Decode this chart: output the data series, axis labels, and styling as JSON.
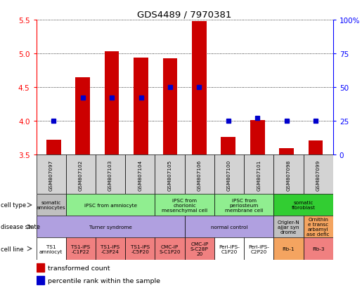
{
  "title": "GDS4489 / 7970381",
  "samples": [
    "GSM807097",
    "GSM807102",
    "GSM807103",
    "GSM807104",
    "GSM807105",
    "GSM807106",
    "GSM807100",
    "GSM807101",
    "GSM807098",
    "GSM807099"
  ],
  "transformed_count": [
    3.72,
    4.65,
    5.03,
    4.94,
    4.93,
    5.48,
    3.76,
    4.01,
    3.6,
    3.71
  ],
  "percentile_rank": [
    25.0,
    42.5,
    42.5,
    42.5,
    50.0,
    50.0,
    25.0,
    27.5,
    25.0,
    25.0
  ],
  "ylim_left": [
    3.5,
    5.5
  ],
  "ylim_right": [
    0,
    100
  ],
  "yticks_left": [
    3.5,
    4.0,
    4.5,
    5.0,
    5.5
  ],
  "yticks_right": [
    0,
    25,
    50,
    75,
    100
  ],
  "bar_color": "#cc0000",
  "dot_color": "#0000cc",
  "bar_bottom": 3.5,
  "cell_type_groups": [
    {
      "label": "somatic\namniocytes",
      "start": 0,
      "end": 1,
      "color": "#c0c0c0"
    },
    {
      "label": "iPSC from amniocyte",
      "start": 1,
      "end": 4,
      "color": "#90ee90"
    },
    {
      "label": "iPSC from\nchorionic\nmesenchymal cell",
      "start": 4,
      "end": 6,
      "color": "#90ee90"
    },
    {
      "label": "iPSC from\nperiosteum\nmembrane cell",
      "start": 6,
      "end": 8,
      "color": "#90ee90"
    },
    {
      "label": "somatic\nfibroblast",
      "start": 8,
      "end": 10,
      "color": "#32cd32"
    }
  ],
  "disease_state_groups": [
    {
      "label": "Turner syndrome",
      "start": 0,
      "end": 5,
      "color": "#b0a0e0"
    },
    {
      "label": "normal control",
      "start": 5,
      "end": 8,
      "color": "#b0a0e0"
    },
    {
      "label": "Crigler-N\najjar syn\ndrome",
      "start": 8,
      "end": 9,
      "color": "#c0c0c0"
    },
    {
      "label": "Ornithin\ne transc\narbamyl\nase defic",
      "start": 9,
      "end": 10,
      "color": "#f4a460"
    }
  ],
  "cell_line_groups": [
    {
      "label": "TS1\namniocyt",
      "start": 0,
      "end": 1,
      "color": "#ffffff"
    },
    {
      "label": "TS1-iPS\n-C1P22",
      "start": 1,
      "end": 2,
      "color": "#f08080"
    },
    {
      "label": "TS1-iPS\n-C3P24",
      "start": 2,
      "end": 3,
      "color": "#f08080"
    },
    {
      "label": "TS1-iPS\n-C5P20",
      "start": 3,
      "end": 4,
      "color": "#f08080"
    },
    {
      "label": "CMC-iP\nS-C1P20",
      "start": 4,
      "end": 5,
      "color": "#f08080"
    },
    {
      "label": "CMC-iP\nS-C28P\n20",
      "start": 5,
      "end": 6,
      "color": "#f08080"
    },
    {
      "label": "Peri-iPS-\nC1P20",
      "start": 6,
      "end": 7,
      "color": "#ffffff"
    },
    {
      "label": "Peri-iPS-\nC2P20",
      "start": 7,
      "end": 8,
      "color": "#ffffff"
    },
    {
      "label": "Fib-1",
      "start": 8,
      "end": 9,
      "color": "#f4a460"
    },
    {
      "label": "Fib-3",
      "start": 9,
      "end": 10,
      "color": "#f08080"
    }
  ],
  "row_labels": [
    "cell type",
    "disease state",
    "cell line"
  ]
}
